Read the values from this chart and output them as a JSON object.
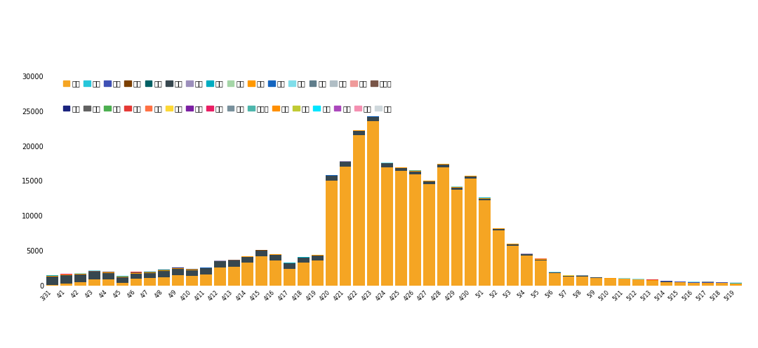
{
  "figsize": [
    10.8,
    4.97
  ],
  "dpi": 100,
  "background_color": "#ffffff",
  "ylim": [
    0,
    30000
  ],
  "yticks": [
    0,
    5000,
    10000,
    15000,
    20000,
    25000,
    30000
  ],
  "dates": [
    "3/31",
    "4/1",
    "4/2",
    "4/3",
    "4/4",
    "4/5",
    "4/6",
    "4/7",
    "4/8",
    "4/9",
    "4/10",
    "4/11",
    "4/12",
    "4/13",
    "4/14",
    "4/15",
    "4/16",
    "4/17",
    "4/18",
    "4/19",
    "4/20",
    "4/21",
    "4/22",
    "4/23",
    "4/24",
    "4/25",
    "4/26",
    "4/27",
    "4/28",
    "4/29",
    "4/30",
    "5/1",
    "5/2",
    "5/3",
    "5/4",
    "5/5",
    "5/6",
    "5/7",
    "5/8",
    "5/9",
    "5/10",
    "5/11",
    "5/12",
    "5/13",
    "5/14",
    "5/15",
    "5/16",
    "5/17",
    "5/18",
    "5/19"
  ],
  "provinces": [
    "上海",
    "吉林",
    "广东",
    "黑龙江",
    "陕西",
    "北京",
    "四川",
    "天津",
    "河南",
    "安徽",
    "辽宁",
    "江苏",
    "青海",
    "浙江",
    "湖北",
    "河北",
    "福建",
    "贵州",
    "广西",
    "云南",
    "重庆",
    "江西",
    "山东",
    "湖南",
    "山西",
    "内蒙古",
    "新疆",
    "宁夏",
    "甘肃",
    "海南",
    "兵团",
    "西藏"
  ],
  "legend_row1": [
    "上海",
    "四川",
    "北京",
    "天津",
    "河南",
    "吉林",
    "安徽",
    "辽宁",
    "江苏",
    "广东",
    "青海",
    "浙江",
    "湖北",
    "河北",
    "福建",
    "黑龙江"
  ],
  "legend_row2": [
    "贵州",
    "广西",
    "云南",
    "重庆",
    "江西",
    "山东",
    "湖南",
    "陕西",
    "山西",
    "内蒙古",
    "新疆",
    "宁夏",
    "甘肃",
    "海南",
    "兵团",
    "西藏"
  ],
  "province_colors": {
    "上海": "#f5a523",
    "四川": "#26c6da",
    "北京": "#3f51b5",
    "天津": "#7b3f00",
    "河南": "#006064",
    "吉林": "#37474f",
    "安徽": "#9c8fbc",
    "辽宁": "#00acc1",
    "江苏": "#a5d6a7",
    "广东": "#ff9800",
    "青海": "#1565c0",
    "浙江": "#80deea",
    "湖北": "#607d8b",
    "河北": "#b0bec5",
    "福建": "#ef9a9a",
    "黑龙江": "#795548",
    "贵州": "#1a237e",
    "广西": "#616161",
    "云南": "#4caf50",
    "重庆": "#e53935",
    "江西": "#ff7043",
    "山东": "#fdd835",
    "湖南": "#7b1fa2",
    "陕西": "#e91e63",
    "山西": "#78909c",
    "内蒙古": "#4db6ac",
    "新疆": "#ff8f00",
    "宁夏": "#c0ca33",
    "甘肃": "#00e5ff",
    "海南": "#ab47bc",
    "兵团": "#f48fb1",
    "西藏": "#cfd8dc"
  },
  "data": {
    "上海": [
      96,
      260,
      425,
      819,
      824,
      311,
      1006,
      1015,
      1172,
      1478,
      1348,
      1582,
      2573,
      2676,
      3238,
      4144,
      3590,
      2417,
      3238,
      3590,
      15005,
      17077,
      21582,
      23585,
      16980,
      16407,
      15947,
      14561,
      16983,
      13735,
      15319,
      12193,
      7858,
      5669,
      4269,
      3562,
      1716,
      1216,
      1242,
      1044,
      955,
      915,
      823,
      668,
      504,
      407,
      333,
      291,
      306,
      191
    ],
    "吉林": [
      1204,
      1232,
      1121,
      1098,
      930,
      826,
      707,
      743,
      882,
      892,
      834,
      841,
      879,
      879,
      812,
      795,
      767,
      730,
      723,
      723,
      719,
      660,
      614,
      590,
      561,
      490,
      455,
      410,
      380,
      350,
      319,
      280,
      250,
      220,
      190,
      160,
      130,
      110,
      90,
      70,
      55,
      42,
      35,
      28,
      20,
      15,
      12,
      8,
      5,
      3
    ],
    "广东": [
      60,
      70,
      80,
      90,
      100,
      80,
      90,
      100,
      120,
      80,
      70,
      60,
      50,
      70,
      80,
      90,
      80,
      60,
      50,
      40,
      50,
      60,
      70,
      50,
      40,
      30,
      40,
      50,
      60,
      70,
      80,
      90,
      80,
      70,
      60,
      50,
      40,
      30,
      20,
      10,
      15,
      20,
      25,
      30,
      35,
      40,
      45,
      50,
      45,
      40
    ],
    "黑龙江": [
      30,
      40,
      50,
      60,
      70,
      60,
      50,
      40,
      30,
      20,
      15,
      10,
      8,
      6,
      4,
      3,
      2,
      2,
      2,
      2,
      2,
      2,
      2,
      2,
      2,
      2,
      2,
      2,
      2,
      2,
      2,
      2,
      2,
      2,
      2,
      2,
      2,
      2,
      2,
      2,
      2,
      2,
      2,
      2,
      2,
      2,
      2,
      2,
      2,
      2
    ],
    "陕西": [
      10,
      12,
      15,
      18,
      20,
      18,
      15,
      12,
      10,
      8,
      6,
      5,
      4,
      3,
      2,
      2,
      2,
      2,
      2,
      2,
      2,
      2,
      2,
      2,
      2,
      2,
      2,
      2,
      2,
      2,
      2,
      2,
      2,
      2,
      2,
      2,
      2,
      2,
      2,
      2,
      2,
      2,
      2,
      2,
      2,
      2,
      2,
      2,
      2,
      2
    ],
    "北京": [
      0,
      0,
      0,
      0,
      0,
      0,
      0,
      0,
      0,
      0,
      0,
      0,
      0,
      0,
      0,
      0,
      0,
      0,
      0,
      0,
      0,
      0,
      0,
      0,
      0,
      0,
      0,
      0,
      0,
      0,
      0,
      0,
      0,
      0,
      0,
      0,
      0,
      0,
      0,
      0,
      0,
      0,
      0,
      30,
      55,
      65,
      85,
      99,
      80,
      55
    ],
    "四川": [
      0,
      0,
      0,
      0,
      0,
      0,
      0,
      0,
      0,
      0,
      0,
      0,
      0,
      0,
      0,
      0,
      0,
      0,
      0,
      0,
      0,
      0,
      0,
      0,
      0,
      0,
      0,
      0,
      0,
      0,
      0,
      0,
      0,
      0,
      0,
      0,
      0,
      0,
      0,
      0,
      0,
      0,
      0,
      0,
      0,
      0,
      0,
      0,
      0,
      32
    ],
    "天津": [
      2,
      2,
      2,
      2,
      2,
      2,
      2,
      2,
      2,
      2,
      2,
      2,
      2,
      2,
      2,
      2,
      2,
      2,
      2,
      2,
      2,
      2,
      2,
      2,
      2,
      2,
      2,
      2,
      2,
      2,
      2,
      2,
      2,
      2,
      2,
      2,
      2,
      2,
      2,
      2,
      2,
      2,
      2,
      2,
      2,
      2,
      2,
      2,
      2,
      2
    ],
    "河南": [
      5,
      5,
      5,
      5,
      5,
      5,
      5,
      5,
      5,
      5,
      5,
      5,
      5,
      5,
      5,
      5,
      5,
      5,
      5,
      5,
      5,
      5,
      5,
      5,
      5,
      5,
      5,
      5,
      5,
      5,
      5,
      5,
      5,
      5,
      5,
      5,
      5,
      5,
      5,
      5,
      5,
      5,
      5,
      5,
      5,
      5,
      5,
      5,
      5,
      5
    ],
    "安徽": [
      5,
      5,
      5,
      5,
      5,
      5,
      5,
      5,
      5,
      5,
      5,
      5,
      5,
      5,
      5,
      5,
      5,
      5,
      5,
      5,
      5,
      5,
      5,
      5,
      5,
      5,
      5,
      5,
      5,
      5,
      5,
      5,
      5,
      5,
      5,
      5,
      5,
      5,
      5,
      5,
      5,
      5,
      5,
      5,
      5,
      5,
      5,
      5,
      5,
      5
    ],
    "辽宁": [
      5,
      5,
      5,
      5,
      5,
      5,
      5,
      5,
      5,
      5,
      5,
      5,
      5,
      5,
      5,
      5,
      5,
      5,
      5,
      5,
      5,
      5,
      5,
      5,
      5,
      5,
      5,
      5,
      5,
      5,
      5,
      5,
      5,
      5,
      5,
      5,
      5,
      5,
      5,
      5,
      5,
      5,
      5,
      5,
      5,
      5,
      5,
      5,
      5,
      5
    ],
    "江苏": [
      3,
      3,
      3,
      3,
      3,
      3,
      3,
      3,
      3,
      3,
      3,
      3,
      3,
      3,
      3,
      3,
      3,
      3,
      3,
      3,
      3,
      3,
      3,
      3,
      3,
      3,
      3,
      3,
      3,
      3,
      3,
      3,
      3,
      3,
      3,
      3,
      3,
      3,
      3,
      3,
      3,
      3,
      3,
      3,
      3,
      3,
      3,
      3,
      3,
      3
    ],
    "青海": [
      2,
      2,
      2,
      2,
      2,
      2,
      2,
      2,
      2,
      2,
      2,
      2,
      2,
      2,
      2,
      2,
      2,
      2,
      2,
      2,
      2,
      2,
      2,
      2,
      2,
      2,
      2,
      2,
      2,
      2,
      2,
      2,
      2,
      2,
      2,
      2,
      2,
      2,
      2,
      2,
      2,
      2,
      2,
      2,
      2,
      2,
      2,
      2,
      2,
      2
    ],
    "浙江": [
      10,
      10,
      10,
      10,
      10,
      10,
      10,
      10,
      10,
      10,
      10,
      10,
      10,
      10,
      10,
      10,
      10,
      10,
      10,
      10,
      10,
      10,
      10,
      10,
      10,
      10,
      10,
      10,
      10,
      10,
      10,
      10,
      10,
      10,
      10,
      10,
      10,
      10,
      10,
      10,
      10,
      10,
      10,
      10,
      10,
      10,
      10,
      10,
      10,
      10
    ],
    "湖北": [
      3,
      3,
      3,
      3,
      3,
      3,
      3,
      3,
      3,
      3,
      3,
      3,
      3,
      3,
      3,
      3,
      3,
      3,
      3,
      3,
      3,
      3,
      3,
      3,
      3,
      3,
      3,
      3,
      3,
      3,
      3,
      3,
      3,
      3,
      3,
      3,
      3,
      3,
      3,
      3,
      3,
      3,
      3,
      3,
      3,
      3,
      3,
      3,
      3,
      3
    ],
    "河北": [
      3,
      3,
      3,
      3,
      3,
      3,
      3,
      3,
      3,
      3,
      3,
      3,
      3,
      3,
      3,
      3,
      3,
      3,
      3,
      3,
      3,
      3,
      3,
      3,
      3,
      3,
      3,
      3,
      3,
      3,
      3,
      3,
      3,
      3,
      3,
      3,
      3,
      3,
      3,
      3,
      3,
      3,
      3,
      3,
      3,
      3,
      3,
      3,
      3,
      3
    ],
    "福建": [
      3,
      3,
      3,
      3,
      3,
      3,
      3,
      3,
      3,
      3,
      3,
      3,
      3,
      3,
      3,
      3,
      3,
      3,
      3,
      3,
      3,
      3,
      3,
      3,
      3,
      3,
      3,
      3,
      3,
      3,
      3,
      3,
      3,
      3,
      3,
      3,
      3,
      3,
      3,
      3,
      3,
      3,
      3,
      3,
      3,
      3,
      3,
      3,
      3,
      3
    ],
    "贵州": [
      2,
      2,
      2,
      2,
      2,
      2,
      2,
      2,
      2,
      2,
      2,
      2,
      2,
      2,
      2,
      2,
      2,
      2,
      2,
      2,
      2,
      2,
      2,
      2,
      2,
      2,
      2,
      2,
      2,
      2,
      2,
      2,
      2,
      2,
      2,
      2,
      2,
      2,
      2,
      2,
      2,
      2,
      2,
      2,
      2,
      2,
      2,
      2,
      2,
      2
    ],
    "广西": [
      2,
      2,
      2,
      2,
      2,
      2,
      2,
      2,
      2,
      2,
      2,
      2,
      2,
      2,
      2,
      2,
      2,
      2,
      2,
      2,
      2,
      2,
      2,
      2,
      2,
      2,
      2,
      2,
      2,
      2,
      2,
      2,
      2,
      2,
      2,
      2,
      2,
      2,
      2,
      2,
      2,
      2,
      2,
      2,
      2,
      2,
      2,
      2,
      2,
      2
    ],
    "云南": [
      2,
      2,
      2,
      2,
      2,
      2,
      2,
      2,
      2,
      2,
      2,
      2,
      2,
      2,
      2,
      2,
      2,
      2,
      2,
      2,
      2,
      2,
      2,
      2,
      2,
      2,
      2,
      2,
      2,
      2,
      2,
      2,
      2,
      2,
      2,
      2,
      2,
      2,
      2,
      2,
      2,
      2,
      2,
      2,
      2,
      2,
      2,
      2,
      2,
      2
    ],
    "重庆": [
      2,
      2,
      2,
      2,
      2,
      2,
      2,
      2,
      2,
      2,
      2,
      2,
      2,
      2,
      2,
      2,
      2,
      2,
      2,
      2,
      2,
      2,
      2,
      2,
      2,
      2,
      2,
      2,
      2,
      2,
      2,
      2,
      2,
      2,
      2,
      2,
      2,
      2,
      2,
      2,
      2,
      2,
      2,
      2,
      2,
      2,
      2,
      2,
      2,
      2
    ],
    "江西": [
      2,
      2,
      2,
      2,
      2,
      2,
      2,
      2,
      2,
      2,
      2,
      2,
      2,
      2,
      2,
      2,
      2,
      2,
      2,
      2,
      2,
      2,
      2,
      2,
      2,
      2,
      2,
      2,
      2,
      2,
      2,
      2,
      2,
      2,
      2,
      2,
      2,
      2,
      2,
      2,
      2,
      2,
      2,
      2,
      2,
      2,
      2,
      2,
      2,
      2
    ],
    "山东": [
      2,
      2,
      2,
      2,
      2,
      2,
      2,
      2,
      2,
      2,
      2,
      2,
      2,
      2,
      2,
      2,
      2,
      2,
      2,
      2,
      2,
      2,
      2,
      2,
      2,
      2,
      2,
      2,
      2,
      2,
      2,
      2,
      2,
      2,
      2,
      2,
      2,
      2,
      2,
      2,
      2,
      2,
      2,
      2,
      2,
      2,
      2,
      2,
      2,
      2
    ],
    "湖南": [
      2,
      2,
      2,
      2,
      2,
      2,
      2,
      2,
      2,
      2,
      2,
      2,
      2,
      2,
      2,
      2,
      2,
      2,
      2,
      2,
      2,
      2,
      2,
      2,
      2,
      2,
      2,
      2,
      2,
      2,
      2,
      2,
      2,
      2,
      2,
      2,
      2,
      2,
      2,
      2,
      2,
      2,
      2,
      2,
      2,
      2,
      2,
      2,
      2,
      2
    ],
    "山西": [
      2,
      2,
      2,
      2,
      2,
      2,
      2,
      2,
      2,
      2,
      2,
      2,
      2,
      2,
      2,
      2,
      2,
      2,
      2,
      2,
      2,
      2,
      2,
      2,
      2,
      2,
      2,
      2,
      2,
      2,
      2,
      2,
      2,
      2,
      2,
      2,
      2,
      2,
      2,
      2,
      2,
      2,
      2,
      2,
      2,
      2,
      2,
      2,
      2,
      2
    ],
    "内蒙古": [
      2,
      2,
      2,
      2,
      2,
      2,
      2,
      2,
      2,
      2,
      2,
      2,
      2,
      2,
      2,
      2,
      2,
      2,
      2,
      2,
      2,
      2,
      2,
      2,
      2,
      2,
      2,
      2,
      2,
      2,
      2,
      2,
      2,
      2,
      2,
      2,
      2,
      2,
      2,
      2,
      2,
      2,
      2,
      2,
      2,
      2,
      2,
      2,
      2,
      2
    ],
    "新疆": [
      0,
      0,
      0,
      0,
      0,
      0,
      0,
      0,
      0,
      0,
      0,
      0,
      0,
      0,
      0,
      0,
      0,
      0,
      0,
      0,
      0,
      0,
      0,
      0,
      0,
      0,
      0,
      0,
      0,
      0,
      0,
      0,
      0,
      0,
      0,
      0,
      0,
      0,
      0,
      0,
      0,
      0,
      0,
      0,
      0,
      0,
      0,
      0,
      0,
      0
    ],
    "宁夏": [
      0,
      0,
      0,
      0,
      0,
      0,
      0,
      0,
      0,
      0,
      0,
      0,
      0,
      0,
      0,
      0,
      0,
      0,
      0,
      0,
      0,
      0,
      0,
      0,
      0,
      0,
      0,
      0,
      0,
      0,
      0,
      0,
      0,
      0,
      0,
      0,
      0,
      0,
      0,
      0,
      0,
      0,
      0,
      0,
      0,
      0,
      0,
      0,
      0,
      0
    ],
    "甘肃": [
      0,
      0,
      0,
      0,
      0,
      0,
      0,
      0,
      0,
      0,
      0,
      0,
      0,
      0,
      0,
      0,
      0,
      0,
      0,
      0,
      0,
      0,
      0,
      0,
      0,
      0,
      0,
      0,
      0,
      0,
      0,
      0,
      0,
      0,
      0,
      0,
      0,
      0,
      0,
      0,
      0,
      0,
      0,
      0,
      0,
      0,
      0,
      0,
      0,
      0
    ],
    "海南": [
      0,
      0,
      0,
      0,
      0,
      0,
      0,
      0,
      0,
      0,
      0,
      0,
      0,
      0,
      0,
      0,
      0,
      0,
      0,
      0,
      0,
      0,
      0,
      0,
      0,
      0,
      0,
      0,
      0,
      0,
      0,
      0,
      0,
      0,
      0,
      0,
      0,
      0,
      0,
      0,
      0,
      0,
      0,
      0,
      0,
      0,
      0,
      0,
      0,
      0
    ],
    "兵团": [
      0,
      0,
      0,
      0,
      0,
      0,
      0,
      0,
      0,
      0,
      0,
      0,
      0,
      0,
      0,
      0,
      0,
      0,
      0,
      0,
      0,
      0,
      0,
      0,
      0,
      0,
      0,
      0,
      0,
      0,
      0,
      0,
      0,
      0,
      0,
      0,
      0,
      0,
      0,
      0,
      0,
      0,
      0,
      0,
      0,
      0,
      0,
      0,
      0,
      0
    ],
    "西藏": [
      0,
      0,
      0,
      0,
      0,
      0,
      0,
      0,
      0,
      0,
      0,
      0,
      0,
      0,
      0,
      0,
      0,
      0,
      0,
      0,
      0,
      0,
      0,
      0,
      0,
      0,
      0,
      0,
      0,
      0,
      0,
      0,
      0,
      0,
      0,
      0,
      0,
      0,
      0,
      0,
      0,
      0,
      0,
      0,
      0,
      0,
      0,
      0,
      0,
      55
    ]
  }
}
